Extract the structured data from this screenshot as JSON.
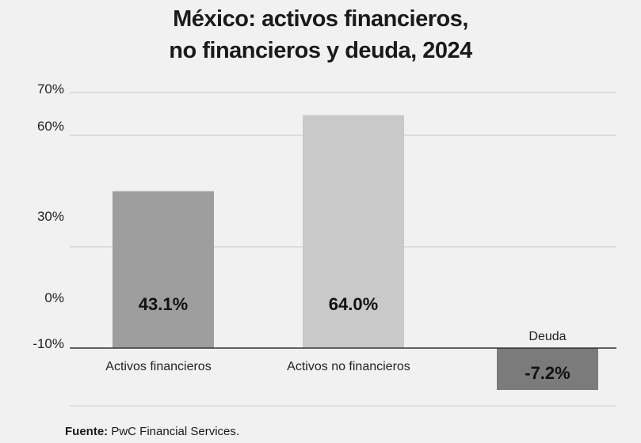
{
  "chart_data": {
    "type": "bar",
    "title_line1": "México: activos financieros,",
    "title_line2": "no financieros y deuda, 2024",
    "categories": [
      "Activos financieros",
      "Activos no financieros",
      "Deuda"
    ],
    "values": [
      43.1,
      64.0,
      -7.2
    ],
    "value_labels": [
      "43.1%",
      "64.0%",
      "-7.2%"
    ],
    "colors": [
      "#9e9e9e",
      "#c9c9c9",
      "#7b7b7b"
    ],
    "y_tick_labels": [
      "70%",
      "60%",
      "30%",
      "0%",
      "-10%"
    ],
    "xlabel": "",
    "ylabel": "",
    "grid": true
  },
  "source": {
    "label": "Fuente:",
    "text": " PwC Financial Services."
  }
}
